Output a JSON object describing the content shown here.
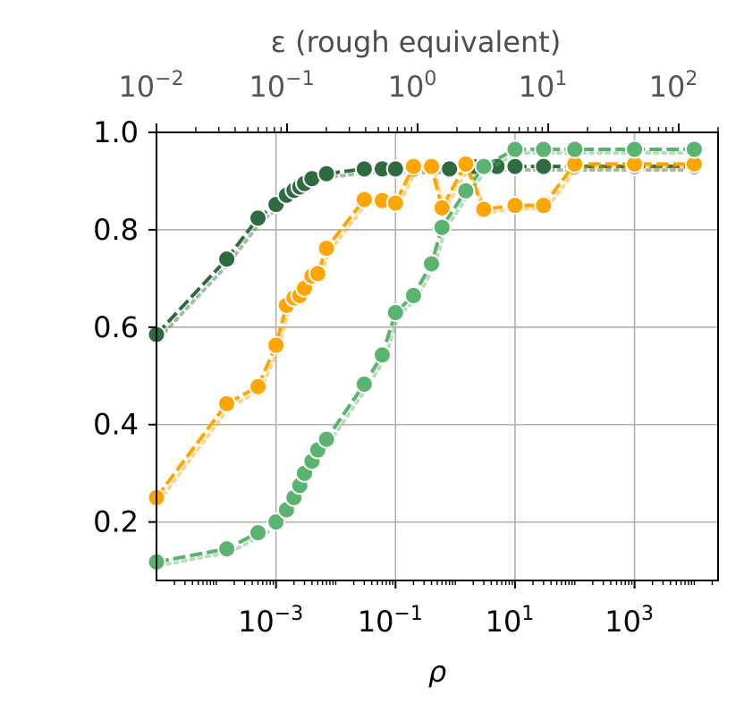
{
  "chart_data": {
    "type": "line",
    "title": "",
    "xlabel": "ρ",
    "x2label": "ε (rough equivalent)",
    "ylabel": "",
    "xscale": "log",
    "x2scale": "log",
    "xlim": [
      1e-05,
      25000
    ],
    "x2lim": [
      0.01,
      200
    ],
    "ylim": [
      0.08,
      1.0
    ],
    "grid": true,
    "xticks": [
      {
        "base": "10",
        "exp": "−3"
      },
      {
        "base": "10",
        "exp": "−1"
      },
      {
        "base": "10",
        "exp": "1"
      },
      {
        "base": "10",
        "exp": "3"
      }
    ],
    "x2ticks": [
      {
        "base": "10",
        "exp": "−2"
      },
      {
        "base": "10",
        "exp": "−1"
      },
      {
        "base": "10",
        "exp": "0"
      },
      {
        "base": "10",
        "exp": "1"
      },
      {
        "base": "10",
        "exp": "2"
      }
    ],
    "yticks": [
      "0.2",
      "0.4",
      "0.6",
      "0.8",
      "1.0"
    ],
    "series": [
      {
        "color": "#2f6b3f",
        "x": [
          1e-05,
          0.00015,
          0.0005,
          0.001,
          0.0015,
          0.002,
          0.0025,
          0.003,
          0.004,
          0.007,
          0.03,
          0.06,
          0.1,
          0.2,
          0.8,
          2,
          5,
          10,
          30,
          100,
          1000,
          10000
        ],
        "y": [
          0.585,
          0.74,
          0.824,
          0.852,
          0.871,
          0.881,
          0.888,
          0.895,
          0.905,
          0.915,
          0.925,
          0.925,
          0.925,
          0.925,
          0.925,
          0.93,
          0.93,
          0.93,
          0.93,
          0.93,
          0.93,
          0.93
        ]
      },
      {
        "color": "#ffa500",
        "x": [
          1e-05,
          0.00015,
          0.0005,
          0.001,
          0.0015,
          0.002,
          0.0025,
          0.003,
          0.004,
          0.005,
          0.007,
          0.03,
          0.06,
          0.1,
          0.2,
          0.4,
          0.6,
          1.5,
          3,
          10,
          30,
          100,
          1000,
          10000
        ],
        "y": [
          0.25,
          0.443,
          0.478,
          0.563,
          0.645,
          0.66,
          0.665,
          0.68,
          0.705,
          0.71,
          0.762,
          0.862,
          0.86,
          0.855,
          0.93,
          0.93,
          0.845,
          0.935,
          0.842,
          0.85,
          0.85,
          0.935,
          0.935,
          0.935
        ]
      },
      {
        "color": "#5ab36e",
        "x": [
          1e-05,
          0.00015,
          0.0005,
          0.001,
          0.0015,
          0.002,
          0.0025,
          0.003,
          0.004,
          0.005,
          0.007,
          0.03,
          0.06,
          0.1,
          0.2,
          0.4,
          0.6,
          1.5,
          3,
          10,
          30,
          100,
          1000,
          10000
        ],
        "y": [
          0.118,
          0.145,
          0.178,
          0.2,
          0.225,
          0.25,
          0.275,
          0.3,
          0.325,
          0.348,
          0.37,
          0.483,
          0.543,
          0.63,
          0.665,
          0.73,
          0.805,
          0.88,
          0.93,
          0.965,
          0.965,
          0.965,
          0.965,
          0.965
        ]
      }
    ]
  }
}
